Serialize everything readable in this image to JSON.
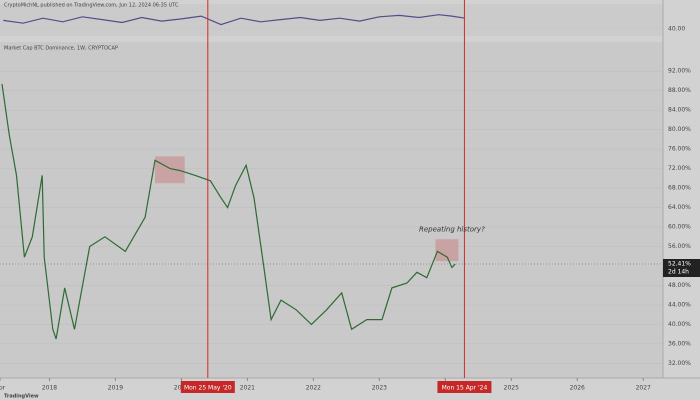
{
  "header": {
    "author": "CryptoMichNL published on TradingView.com, Jun 12, 2024 06:35 UTC"
  },
  "chart_data": [
    {
      "type": "line",
      "color": "#5a4a8a",
      "x": [
        2017.3,
        2017.6,
        2017.9,
        2018.2,
        2018.5,
        2018.8,
        2019.1,
        2019.4,
        2019.7,
        2020.0,
        2020.3,
        2020.6,
        2020.9,
        2021.2,
        2021.5,
        2021.8,
        2022.1,
        2022.4,
        2022.7,
        2023.0,
        2023.3,
        2023.6,
        2023.9,
        2024.1,
        2024.3
      ],
      "values": [
        52,
        48,
        55,
        50,
        57,
        53,
        49,
        56,
        51,
        54,
        58,
        46,
        55,
        50,
        53,
        56,
        52,
        55,
        51,
        57,
        59,
        56,
        60,
        58,
        55
      ],
      "xlim": [
        2017.25,
        2027.3
      ],
      "ylim": [
        30,
        75
      ],
      "yticks": [
        {
          "value": 40,
          "label": "40.00"
        }
      ]
    },
    {
      "type": "line",
      "title": "Market Cap BTC Dominance, 1W, CRYPTOCAP",
      "color": "#2e6b34",
      "x": [
        2017.28,
        2017.39,
        2017.5,
        2017.62,
        2017.74,
        2017.89,
        2017.92,
        2018.05,
        2018.1,
        2018.23,
        2018.38,
        2018.61,
        2018.84,
        2019.15,
        2019.45,
        2019.6,
        2019.83,
        2019.98,
        2020.21,
        2020.44,
        2020.6,
        2020.7,
        2020.82,
        2020.98,
        2021.1,
        2021.25,
        2021.36,
        2021.51,
        2021.74,
        2021.97,
        2022.2,
        2022.43,
        2022.58,
        2022.81,
        2023.04,
        2023.19,
        2023.42,
        2023.57,
        2023.72,
        2023.88,
        2024.03,
        2024.1,
        2024.15
      ],
      "values": [
        89.4,
        79,
        70.6,
        53.8,
        58,
        70.6,
        53.8,
        39,
        37,
        47.5,
        39,
        56,
        58,
        55,
        62,
        73.7,
        72,
        71.6,
        70.6,
        69.5,
        66,
        64,
        68.5,
        72.7,
        66,
        51.7,
        41,
        45,
        43,
        40,
        43,
        46.5,
        39,
        41,
        41,
        47.5,
        48.5,
        50.7,
        49.6,
        55,
        53.8,
        51.7,
        52.4
      ],
      "xlim": [
        2017.25,
        2027.3
      ],
      "ylim": [
        29,
        98
      ],
      "xticks": [
        {
          "value": 2017.25,
          "label": "Apr"
        },
        2018,
        2019,
        2020,
        2021,
        2022,
        2023,
        2024,
        2025,
        2026,
        2027
      ],
      "yticks": [
        {
          "value": 32,
          "label": "32.00%"
        },
        {
          "value": 36,
          "label": "36.00%"
        },
        {
          "value": 40,
          "label": "40.00%"
        },
        {
          "value": 44,
          "label": "44.00%"
        },
        {
          "value": 48,
          "label": "48.00%"
        },
        {
          "value": 56,
          "label": "56.00%"
        },
        {
          "value": 60,
          "label": "60.00%"
        },
        {
          "value": 64,
          "label": "64.00%"
        },
        {
          "value": 68,
          "label": "68.00%"
        },
        {
          "value": 72,
          "label": "72.00%"
        },
        {
          "value": 76,
          "label": "76.00%"
        },
        {
          "value": 80,
          "label": "80.00%"
        },
        {
          "value": 84,
          "label": "84.00%"
        },
        {
          "value": 88,
          "label": "88.00%"
        },
        {
          "value": 92,
          "label": "92.00%"
        }
      ],
      "price_line": {
        "value": 52.41,
        "label": "52.41%",
        "countdown": "2d 14h"
      },
      "markers": [
        {
          "x": 2020.4,
          "label": "Mon 25 May '20"
        },
        {
          "x": 2024.29,
          "label": "Mon 15 Apr '24"
        }
      ],
      "highlights": [
        {
          "x": [
            2019.6,
            2020.05
          ],
          "y": [
            69,
            74.5
          ]
        },
        {
          "x": [
            2023.85,
            2024.2
          ],
          "y": [
            53,
            57.5
          ]
        }
      ],
      "annotation": "Repeating history?"
    }
  ],
  "footer": "TradingView"
}
